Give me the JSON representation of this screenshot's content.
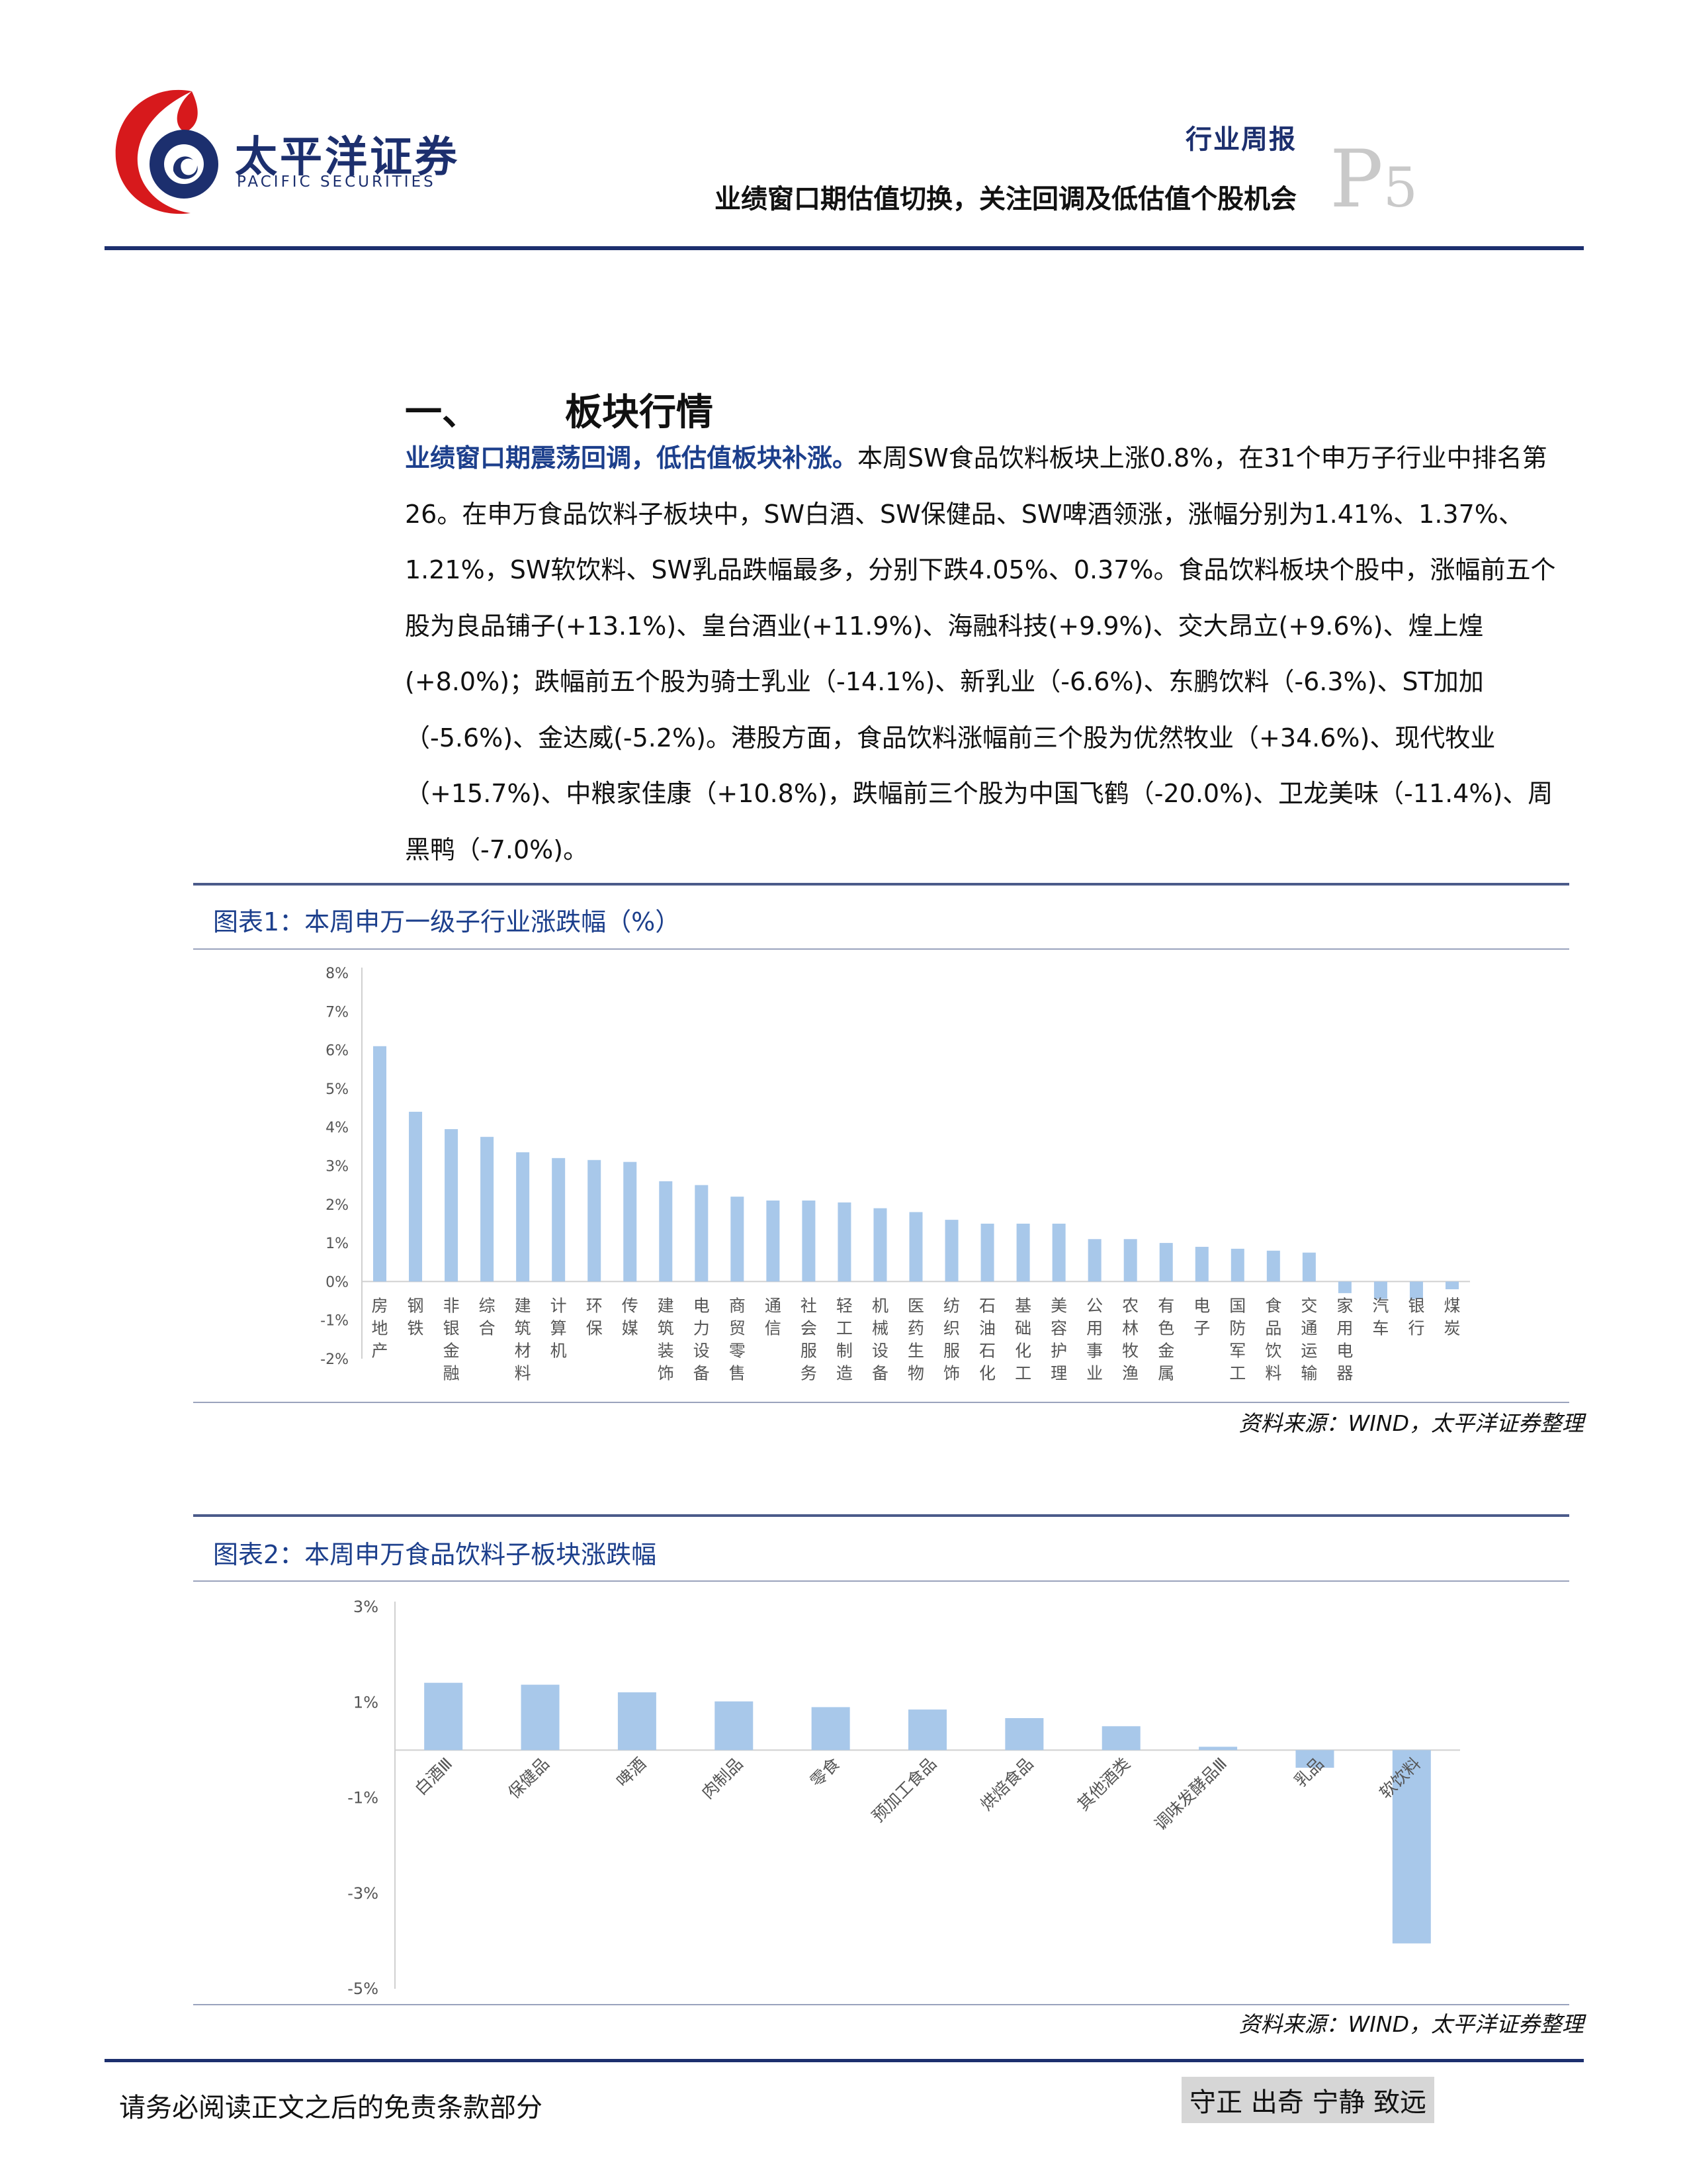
{
  "header": {
    "brand_cn": "太平洋证券",
    "brand_en": "PACIFIC SECURITIES",
    "report_type": "行业周报",
    "report_title": "业绩窗口期估值切换，关注回调及低估值个股机会",
    "page_letter": "P",
    "page_number": "5",
    "brand_colors": {
      "navy": "#1c2f6e",
      "red": "#d7191c"
    }
  },
  "section": {
    "number": "一、",
    "title": "板块行情",
    "lead": "业绩窗口期震荡回调，低估值板块补涨。",
    "body": "本周SW食品饮料板块上涨0.8%，在31个申万子行业中排名第26。在申万食品饮料子板块中，SW白酒、SW保健品、SW啤酒领涨，涨幅分别为1.41%、1.37%、1.21%，SW软饮料、SW乳品跌幅最多，分别下跌4.05%、0.37%。食品饮料板块个股中，涨幅前五个股为良品铺子(+13.1%)、皇台酒业(+11.9%)、海融科技(+9.9%)、交大昂立(+9.6%)、煌上煌(+8.0%)；跌幅前五个股为骑士乳业（-14.1%)、新乳业（-6.6%)、东鹏饮料（-6.3%)、ST加加（-5.6%)、金达威(-5.2%)。港股方面，食品饮料涨幅前三个股为优然牧业（+34.6%)、现代牧业（+15.7%)、中粮家佳康（+10.8%)，跌幅前三个股为中国飞鹤（-20.0%)、卫龙美味（-11.4%)、周黑鸭（-7.0%)。"
  },
  "chart1": {
    "title": "图表1：本周申万一级子行业涨跌幅（%）",
    "source": "资料来源：WIND，太平洋证券整理"
  },
  "chart2": {
    "title": "图表2：本周申万食品饮料子板块涨跌幅",
    "source": "资料来源：WIND，太平洋证券整理"
  },
  "chart_data": [
    {
      "type": "bar",
      "title": "本周申万一级子行业涨跌幅（%）",
      "categories": [
        "房地产",
        "钢铁",
        "非银金融",
        "综合",
        "建筑材料",
        "计算机",
        "环保",
        "传媒",
        "建筑装饰",
        "电力设备",
        "商贸零售",
        "通信",
        "社会服务",
        "轻工制造",
        "机械设备",
        "医药生物",
        "纺织服饰",
        "石油石化",
        "基础化工",
        "美容护理",
        "公用事业",
        "农林牧渔",
        "有色金属",
        "电子",
        "国防军工",
        "食品饮料",
        "交通运输",
        "家用电器",
        "汽车",
        "银行",
        "煤炭"
      ],
      "values": [
        6.1,
        4.4,
        3.95,
        3.75,
        3.35,
        3.2,
        3.15,
        3.1,
        2.6,
        2.5,
        2.2,
        2.1,
        2.1,
        2.05,
        1.9,
        1.8,
        1.6,
        1.5,
        1.5,
        1.5,
        1.1,
        1.1,
        1.0,
        0.9,
        0.85,
        0.8,
        0.75,
        -0.3,
        -0.45,
        -0.45,
        -0.2
      ],
      "ylim": [
        -2,
        8
      ],
      "yticks": [
        "8%",
        "7%",
        "6%",
        "5%",
        "4%",
        "3%",
        "2%",
        "1%",
        "0%",
        "-1%",
        "-2%"
      ],
      "bar_color": "#a8c8ea"
    },
    {
      "type": "bar",
      "title": "本周申万食品饮料子板块涨跌幅",
      "categories": [
        "白酒Ⅲ",
        "保健品",
        "啤酒",
        "肉制品",
        "零食",
        "预加工食品",
        "烘焙食品",
        "其他酒类",
        "调味发酵品Ⅲ",
        "乳品",
        "软饮料"
      ],
      "values": [
        1.41,
        1.37,
        1.21,
        1.02,
        0.9,
        0.85,
        0.67,
        0.5,
        0.07,
        -0.37,
        -4.05
      ],
      "ylim": [
        -5,
        3
      ],
      "yticks": [
        "3%",
        "1%",
        "-1%",
        "-3%",
        "-5%"
      ],
      "bar_color": "#a8c8ea"
    }
  ],
  "footer": {
    "disclaimer": "请务必阅读正文之后的免责条款部分",
    "motto": "守正 出奇 宁静 致远"
  }
}
